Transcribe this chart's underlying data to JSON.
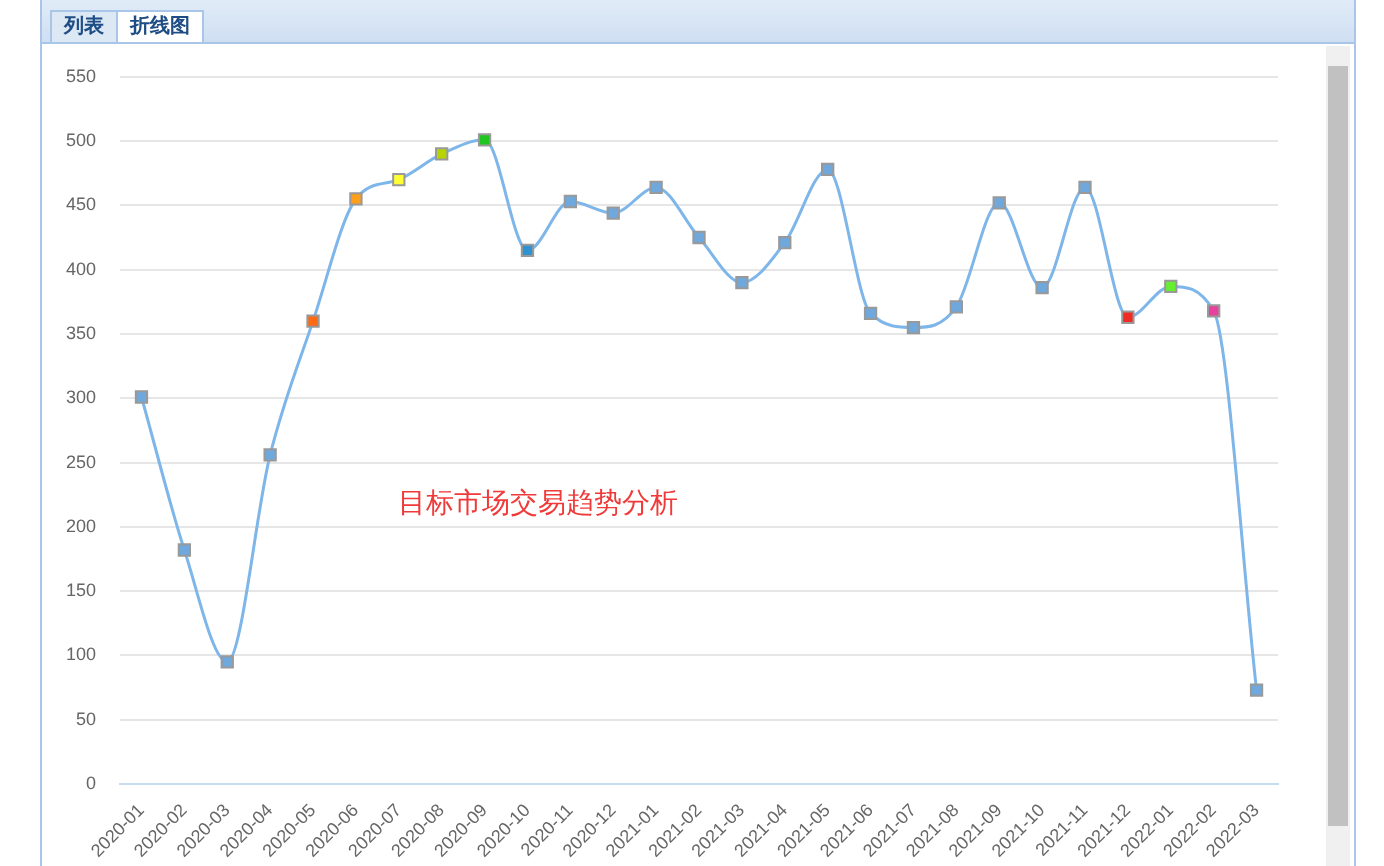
{
  "chart_data": {
    "type": "line",
    "title": "目标市场交易趋势分析",
    "annotations": [
      "列表",
      "折线图"
    ],
    "categories": [
      "2020-01",
      "2020-02",
      "2020-03",
      "2020-04",
      "2020-05",
      "2020-06",
      "2020-07",
      "2020-08",
      "2020-09",
      "2020-10",
      "2020-11",
      "2020-12",
      "2021-01",
      "2021-02",
      "2021-03",
      "2021-04",
      "2021-05",
      "2021-06",
      "2021-07",
      "2021-08",
      "2021-09",
      "2021-10",
      "2021-11",
      "2021-12",
      "2022-01",
      "2022-02",
      "2022-03"
    ],
    "series": [
      {
        "color": "#7eb6ea",
        "values": [
          301,
          182,
          95,
          256,
          360,
          455,
          470,
          490,
          501,
          415,
          453,
          444,
          464,
          425,
          390,
          421,
          478,
          366,
          355,
          371,
          452,
          386,
          464,
          363,
          387,
          368,
          73
        ],
        "colors": [
          "#6fa8dc",
          "#6fa8dc",
          "#6fa8dc",
          "#6fa8dc",
          "#ff6a13",
          "#ff9f1a",
          "#ffff33",
          "#b5d400",
          "#22c422",
          "#2f93d1",
          "#6fa8dc",
          "#6fa8dc",
          "#6fa8dc",
          "#6fa8dc",
          "#6fa8dc",
          "#6fa8dc",
          "#6fa8dc",
          "#6fa8dc",
          "#6fa8dc",
          "#6fa8dc",
          "#6fa8dc",
          "#6fa8dc",
          "#6fa8dc",
          "#ee2b24",
          "#66ee33",
          "#e8409f",
          "#6fa8dc"
        ]
      }
    ],
    "ylim": [
      0,
      550
    ],
    "yticks": [
      0,
      50,
      100,
      150,
      200,
      250,
      300,
      350,
      400,
      450,
      500,
      550
    ],
    "grid": "y",
    "marker": "square",
    "legend": false
  }
}
